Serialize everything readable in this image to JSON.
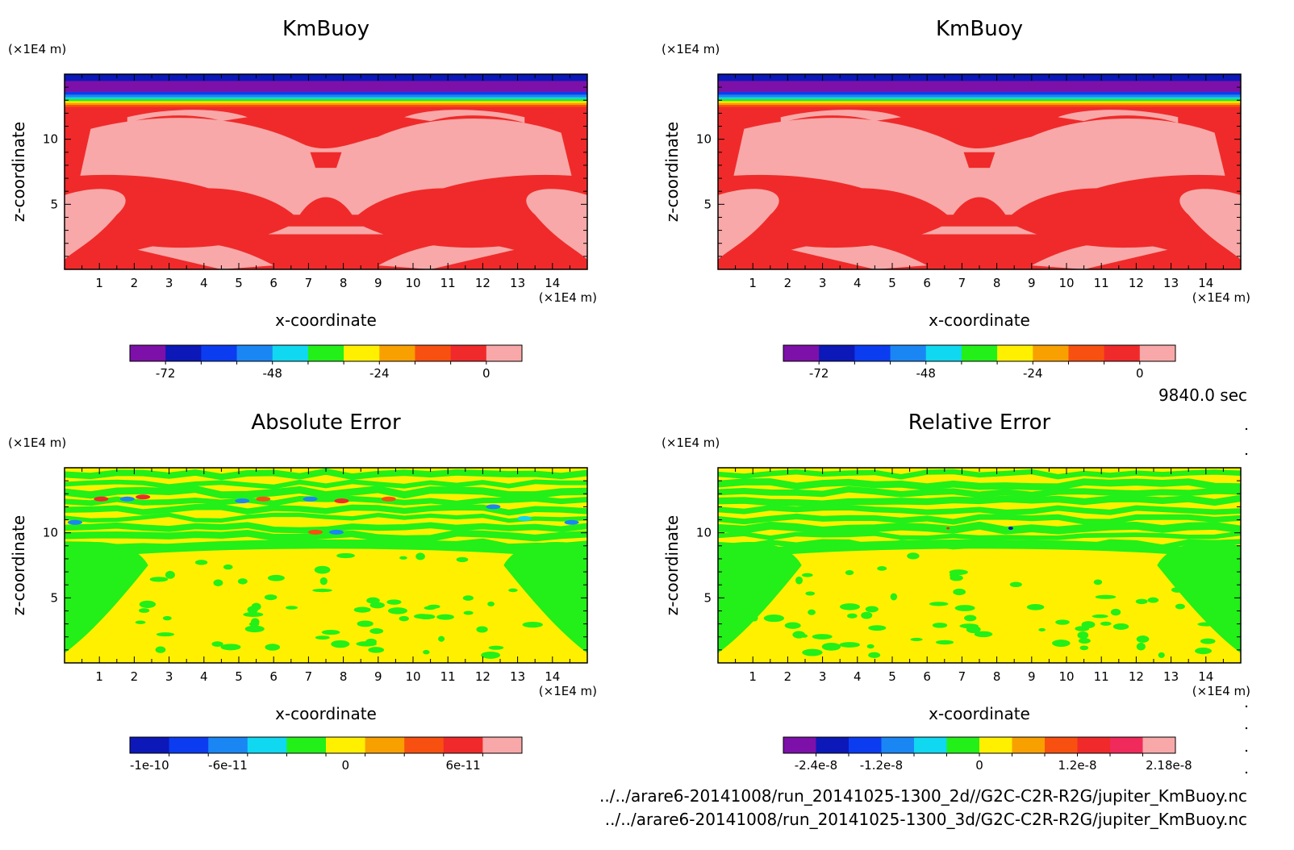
{
  "time_label": "9840.0 sec",
  "source_files": [
    "../../arare6-20141008/run_20141025-1300_2d//G2C-C2R-R2G/jupiter_KmBuoy.nc",
    "../../arare6-20141008/run_20141025-1300_3d/G2C-C2R-R2G/jupiter_KmBuoy.nc"
  ],
  "chart_data": [
    {
      "type": "heatmap",
      "title": "KmBuoy",
      "xlabel": "x-coordinate",
      "ylabel": "z-coordinate",
      "x_unit": "(×1E4 m)",
      "y_unit": "(×1E4 m)",
      "xlim": [
        0,
        15
      ],
      "ylim": [
        0,
        15
      ],
      "x_ticks": [
        1,
        2,
        3,
        4,
        5,
        6,
        7,
        8,
        9,
        10,
        11,
        12,
        13,
        14
      ],
      "y_ticks": [
        5,
        10
      ],
      "colorbar": {
        "colors": [
          "#7d10a8",
          "#0c18b8",
          "#0c3cf0",
          "#1a86f4",
          "#10d8f0",
          "#22f018",
          "#fff000",
          "#f8a000",
          "#f85010",
          "#f02a2a",
          "#f8a8a8"
        ],
        "tick_labels": [
          "-72",
          "-48",
          "-24",
          "0"
        ]
      }
    },
    {
      "type": "heatmap",
      "title": "KmBuoy",
      "xlabel": "x-coordinate",
      "ylabel": "z-coordinate",
      "x_unit": "(×1E4 m)",
      "y_unit": "(×1E4 m)",
      "xlim": [
        0,
        15
      ],
      "ylim": [
        0,
        15
      ],
      "x_ticks": [
        1,
        2,
        3,
        4,
        5,
        6,
        7,
        8,
        9,
        10,
        11,
        12,
        13,
        14
      ],
      "y_ticks": [
        5,
        10
      ],
      "colorbar": {
        "colors": [
          "#7d10a8",
          "#0c18b8",
          "#0c3cf0",
          "#1a86f4",
          "#10d8f0",
          "#22f018",
          "#fff000",
          "#f8a000",
          "#f85010",
          "#f02a2a",
          "#f8a8a8"
        ],
        "tick_labels": [
          "-72",
          "-48",
          "-24",
          "0"
        ]
      }
    },
    {
      "type": "heatmap",
      "title": "Absolute Error",
      "xlabel": "x-coordinate",
      "ylabel": "z-coordinate",
      "x_unit": "(×1E4 m)",
      "y_unit": "(×1E4 m)",
      "xlim": [
        0,
        15
      ],
      "ylim": [
        0,
        15
      ],
      "x_ticks": [
        1,
        2,
        3,
        4,
        5,
        6,
        7,
        8,
        9,
        10,
        11,
        12,
        13,
        14
      ],
      "y_ticks": [
        5,
        10
      ],
      "colorbar": {
        "colors": [
          "#0c18b8",
          "#0c3cf0",
          "#1a86f4",
          "#10d8f0",
          "#22f018",
          "#fff000",
          "#f8a000",
          "#f85010",
          "#f02a2a",
          "#f8a8a8"
        ],
        "tick_labels": [
          "-1e-10",
          "-6e-11",
          "0",
          "6e-11"
        ]
      }
    },
    {
      "type": "heatmap",
      "title": "Relative Error",
      "xlabel": "x-coordinate",
      "ylabel": "z-coordinate",
      "x_unit": "(×1E4 m)",
      "y_unit": "(×1E4 m)",
      "xlim": [
        0,
        15
      ],
      "ylim": [
        0,
        15
      ],
      "x_ticks": [
        1,
        2,
        3,
        4,
        5,
        6,
        7,
        8,
        9,
        10,
        11,
        12,
        13,
        14
      ],
      "y_ticks": [
        5,
        10
      ],
      "colorbar": {
        "colors": [
          "#7d10a8",
          "#0c18b8",
          "#0c3cf0",
          "#1a86f4",
          "#10d8f0",
          "#22f018",
          "#fff000",
          "#f8a000",
          "#f85010",
          "#f02a2a",
          "#f02a5a",
          "#f8a8a8"
        ],
        "tick_labels": [
          "-2.4e-8",
          "-1.2e-8",
          "0",
          "1.2e-8",
          "2.18e-8"
        ]
      }
    }
  ]
}
